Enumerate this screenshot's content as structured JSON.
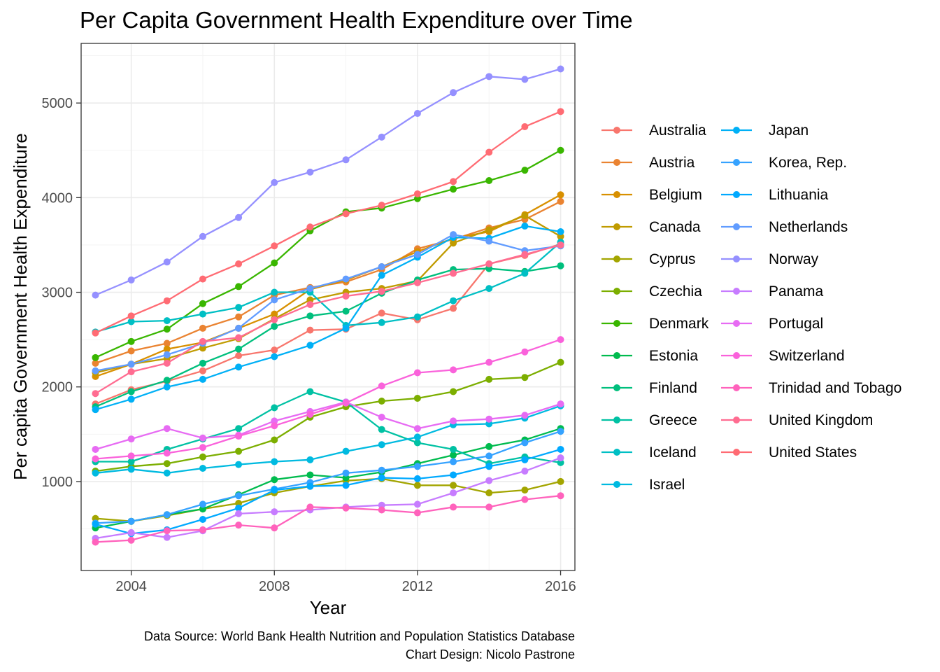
{
  "chart_data": {
    "type": "line",
    "title": "Per Capita Government Health Expenditure over Time",
    "xlabel": "Year",
    "ylabel": "Per capita Government Health Expenditure",
    "xlim": [
      2002.6,
      2016.4
    ],
    "ylim": [
      60,
      5630
    ],
    "x_ticks": [
      2004,
      2008,
      2012,
      2016
    ],
    "y_ticks": [
      1000,
      2000,
      3000,
      4000,
      5000
    ],
    "grid": true,
    "legend_position": "right",
    "x": [
      2003,
      2004,
      2005,
      2006,
      2007,
      2008,
      2009,
      2010,
      2011,
      2012,
      2013,
      2014,
      2015,
      2016
    ],
    "series": [
      {
        "name": "Australia",
        "color": "#F8766D",
        "values": [
          1820,
          1970,
          2060,
          2170,
          2330,
          2390,
          2600,
          2610,
          2780,
          2710,
          2830,
          3300,
          3390,
          3510
        ]
      },
      {
        "name": "Austria",
        "color": "#EA8331",
        "values": [
          2250,
          2380,
          2460,
          2620,
          2740,
          2970,
          3050,
          3110,
          3240,
          3460,
          3560,
          3680,
          3770,
          3960
        ]
      },
      {
        "name": "Belgium",
        "color": "#D89000",
        "values": [
          2110,
          2240,
          2400,
          2470,
          2620,
          2770,
          3030,
          3130,
          3270,
          3430,
          3570,
          3640,
          3820,
          4030
        ]
      },
      {
        "name": "Canada",
        "color": "#C09B00",
        "values": [
          2150,
          2240,
          2300,
          2410,
          2510,
          2720,
          2920,
          3000,
          3040,
          3120,
          3520,
          3660,
          3810,
          3590
        ]
      },
      {
        "name": "Cyprus",
        "color": "#A3A500",
        "values": [
          610,
          580,
          640,
          710,
          770,
          880,
          950,
          1010,
          1030,
          960,
          960,
          880,
          910,
          1000
        ]
      },
      {
        "name": "Czechia",
        "color": "#7CAE00",
        "values": [
          1110,
          1160,
          1190,
          1260,
          1320,
          1440,
          1680,
          1790,
          1850,
          1880,
          1950,
          2080,
          2100,
          2260
        ]
      },
      {
        "name": "Denmark",
        "color": "#39B600",
        "values": [
          2310,
          2480,
          2610,
          2880,
          3060,
          3310,
          3650,
          3850,
          3890,
          3990,
          4090,
          4180,
          4290,
          4500
        ]
      },
      {
        "name": "Estonia",
        "color": "#00BB4E",
        "values": [
          510,
          580,
          650,
          710,
          860,
          1020,
          1070,
          1040,
          1100,
          1190,
          1280,
          1370,
          1440,
          1560
        ]
      },
      {
        "name": "Finland",
        "color": "#00BF7D",
        "values": [
          1790,
          1950,
          2070,
          2250,
          2400,
          2640,
          2750,
          2800,
          2990,
          3130,
          3240,
          3250,
          3220,
          3280
        ]
      },
      {
        "name": "Greece",
        "color": "#00C1A3",
        "values": [
          1210,
          1210,
          1340,
          1450,
          1560,
          1780,
          1950,
          1840,
          1550,
          1410,
          1340,
          1190,
          1260,
          1200
        ]
      },
      {
        "name": "Iceland",
        "color": "#00BFC4",
        "values": [
          2580,
          2690,
          2700,
          2770,
          2840,
          3000,
          3000,
          2650,
          2680,
          2740,
          2910,
          3040,
          3200,
          3530
        ]
      },
      {
        "name": "Israel",
        "color": "#00BAE0",
        "values": [
          1090,
          1130,
          1090,
          1140,
          1180,
          1210,
          1230,
          1320,
          1390,
          1470,
          1600,
          1610,
          1670,
          1800
        ]
      },
      {
        "name": "Japan",
        "color": "#00B0F6",
        "values": [
          1760,
          1870,
          2000,
          2080,
          2210,
          2320,
          2440,
          2620,
          3180,
          3370,
          3580,
          3570,
          3700,
          3640
        ]
      },
      {
        "name": "Korea, Rep.",
        "color": "#35A2FF",
        "values": [
          560,
          580,
          650,
          760,
          850,
          920,
          990,
          1090,
          1120,
          1160,
          1210,
          1270,
          1410,
          1530
        ]
      },
      {
        "name": "Lithuania",
        "color": "#00A9FF",
        "values": [
          550,
          450,
          490,
          600,
          720,
          910,
          950,
          960,
          1040,
          1030,
          1070,
          1160,
          1230,
          1340
        ]
      },
      {
        "name": "Netherlands",
        "color": "#619CFF",
        "values": [
          2170,
          2240,
          2340,
          2460,
          2620,
          2920,
          3040,
          3140,
          3270,
          3400,
          3610,
          3540,
          3440,
          3490
        ]
      },
      {
        "name": "Norway",
        "color": "#9590FF",
        "values": [
          2970,
          3130,
          3320,
          3590,
          3790,
          4160,
          4270,
          4400,
          4640,
          4890,
          5110,
          5280,
          5250,
          5360
        ]
      },
      {
        "name": "Panama",
        "color": "#C77CFF",
        "values": [
          400,
          460,
          410,
          480,
          660,
          680,
          700,
          730,
          750,
          760,
          880,
          1010,
          1110,
          1250
        ]
      },
      {
        "name": "Portugal",
        "color": "#E76BF3",
        "values": [
          1340,
          1450,
          1560,
          1460,
          1490,
          1640,
          1740,
          1840,
          1680,
          1560,
          1640,
          1660,
          1700,
          1820
        ]
      },
      {
        "name": "Switzerland",
        "color": "#FA62DB",
        "values": [
          1240,
          1270,
          1300,
          1360,
          1480,
          1590,
          1710,
          1830,
          2010,
          2150,
          2180,
          2260,
          2370,
          2500
        ]
      },
      {
        "name": "Trinidad and Tobago",
        "color": "#FF62BC",
        "values": [
          360,
          380,
          480,
          490,
          540,
          510,
          730,
          720,
          700,
          670,
          730,
          730,
          810,
          850
        ]
      },
      {
        "name": "United Kingdom",
        "color": "#FF6C91",
        "values": [
          1930,
          2160,
          2250,
          2480,
          2520,
          2710,
          2870,
          2960,
          3010,
          3100,
          3200,
          3300,
          3400,
          3500
        ]
      },
      {
        "name": "United States",
        "color": "#FF6B73",
        "values": [
          2570,
          2750,
          2910,
          3140,
          3300,
          3490,
          3690,
          3830,
          3920,
          4040,
          4170,
          4480,
          4750,
          4910
        ]
      }
    ],
    "caption": [
      "Data Source: World Bank Health Nutrition and Population Statistics Database",
      "Chart Design: Nicolo Pastrone"
    ]
  }
}
